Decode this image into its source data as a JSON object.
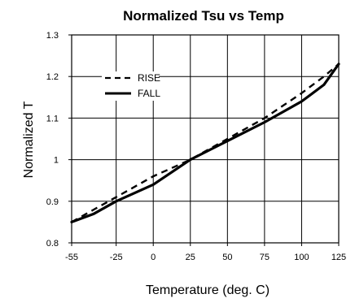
{
  "chart_data": {
    "type": "line",
    "title": "Normalized Tsu  vs Temp",
    "xlabel": "Temperature (deg. C)",
    "ylabel": "Normalized T",
    "xlim": [
      -55,
      125
    ],
    "ylim": [
      0.8,
      1.3
    ],
    "x_ticks": [
      -55,
      -25,
      0,
      25,
      50,
      75,
      100,
      125
    ],
    "y_ticks": [
      0.8,
      0.9,
      1.0,
      1.1,
      1.2,
      1.3
    ],
    "x_tick_labels": [
      "-55",
      "-25",
      "0",
      "25",
      "50",
      "75",
      "100",
      "125"
    ],
    "y_tick_labels": [
      "0.8",
      "0.9",
      "1",
      "1.1",
      "1.2",
      "1.3"
    ],
    "grid": true,
    "legend_position": "upper-left",
    "series": [
      {
        "name": "RISE",
        "style": "dashed",
        "color": "#000000",
        "x": [
          -55,
          -40,
          -25,
          0,
          25,
          50,
          75,
          100,
          115,
          125
        ],
        "y": [
          0.85,
          0.88,
          0.91,
          0.96,
          1.0,
          1.05,
          1.1,
          1.16,
          1.2,
          1.23
        ]
      },
      {
        "name": "FALL",
        "style": "solid",
        "color": "#000000",
        "x": [
          -55,
          -40,
          -25,
          0,
          25,
          50,
          75,
          100,
          115,
          125
        ],
        "y": [
          0.85,
          0.87,
          0.9,
          0.94,
          1.0,
          1.045,
          1.09,
          1.14,
          1.18,
          1.23
        ]
      }
    ]
  }
}
